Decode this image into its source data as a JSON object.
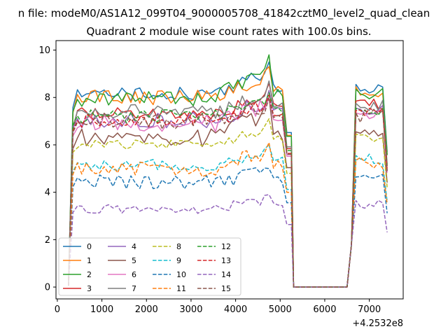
{
  "chart_data": {
    "type": "line",
    "suptitle": "n file: modeM0/AS1A12_099T04_9000005708_41842cztM0_level2_quad_clean",
    "title": "Quadrant 2 module wise count rates with 100.0s bins.",
    "xlabel": "",
    "ylabel": "",
    "x_offset_label": "+4.2532e8",
    "xlim": [
      -30,
      7760
    ],
    "ylim": [
      -0.5,
      10.4
    ],
    "x_ticks": [
      0,
      1000,
      2000,
      3000,
      4000,
      5000,
      6000,
      7000
    ],
    "x_tick_labels": [
      "0",
      "1000",
      "2000",
      "3000",
      "4000",
      "5000",
      "6000",
      "7000"
    ],
    "y_ticks": [
      0,
      2,
      4,
      6,
      8,
      10
    ],
    "y_tick_labels": [
      "0",
      "2",
      "4",
      "6",
      "8",
      "10"
    ],
    "grid": false,
    "legend_position": "lower-left",
    "legend_columns": 4,
    "segments": [
      {
        "start": 250,
        "step": 100,
        "count": 51
      },
      {
        "start": 5300,
        "step": 100,
        "count": 13
      },
      {
        "start": 6600,
        "step": 100,
        "count": 9
      }
    ],
    "series": [
      {
        "name": "0",
        "color": "#1f77b4",
        "style": "solid",
        "level": 8.15,
        "noise": 0.18,
        "peak": 9.5,
        "drop": 8.4
      },
      {
        "name": "1",
        "color": "#ff7f0e",
        "style": "solid",
        "level": 8.0,
        "noise": 0.18,
        "peak": 9.3,
        "drop": 8.3
      },
      {
        "name": "2",
        "color": "#2ca02c",
        "style": "solid",
        "level": 7.95,
        "noise": 0.2,
        "peak": 9.8,
        "drop": 8.2
      },
      {
        "name": "3",
        "color": "#d62728",
        "style": "solid",
        "level": 7.3,
        "noise": 0.18,
        "peak": 8.6,
        "drop": 7.7
      },
      {
        "name": "4",
        "color": "#9467bd",
        "style": "solid",
        "level": 7.0,
        "noise": 0.22,
        "peak": 8.3,
        "drop": 7.4
      },
      {
        "name": "5",
        "color": "#8c564b",
        "style": "solid",
        "level": 6.3,
        "noise": 0.22,
        "peak": 8.0,
        "drop": 6.4
      },
      {
        "name": "6",
        "color": "#e377c2",
        "style": "solid",
        "level": 6.9,
        "noise": 0.22,
        "peak": 8.0,
        "drop": 7.2
      },
      {
        "name": "7",
        "color": "#7f7f7f",
        "style": "solid",
        "level": 7.4,
        "noise": 0.2,
        "peak": 8.7,
        "drop": 7.6
      },
      {
        "name": "8",
        "color": "#bcbd22",
        "style": "dashed",
        "level": 6.0,
        "noise": 0.12,
        "peak": 7.1,
        "drop": 6.3
      },
      {
        "name": "9",
        "color": "#17becf",
        "style": "dashed",
        "level": 5.15,
        "noise": 0.14,
        "peak": 6.0,
        "drop": 5.4
      },
      {
        "name": "10",
        "color": "#1f77b4",
        "style": "dashed",
        "level": 4.45,
        "noise": 0.18,
        "peak": 5.0,
        "drop": 4.5
      },
      {
        "name": "11",
        "color": "#ff7f0e",
        "style": "dashed",
        "level": 5.0,
        "noise": 0.2,
        "peak": 6.1,
        "drop": 5.2
      },
      {
        "name": "12",
        "color": "#2ca02c",
        "style": "dashed",
        "level": 7.2,
        "noise": 0.18,
        "peak": 8.2,
        "drop": 7.4
      },
      {
        "name": "13",
        "color": "#d62728",
        "style": "dashed",
        "level": 7.05,
        "noise": 0.18,
        "peak": 8.1,
        "drop": 7.3
      },
      {
        "name": "14",
        "color": "#9467bd",
        "style": "dashed",
        "level": 3.3,
        "noise": 0.12,
        "peak": 3.9,
        "drop": 3.5
      },
      {
        "name": "15",
        "color": "#8c564b",
        "style": "dashed",
        "level": 7.0,
        "noise": 0.2,
        "peak": 8.0,
        "drop": 7.2
      }
    ]
  }
}
